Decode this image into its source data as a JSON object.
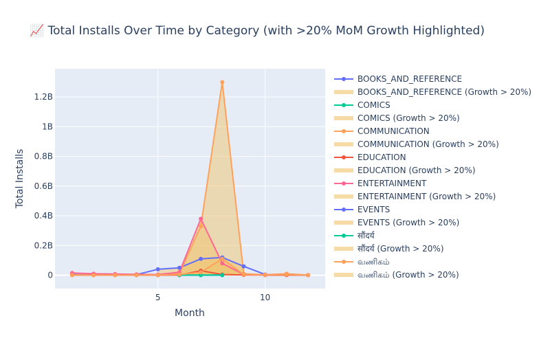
{
  "title": "📈 Total Installs Over Time by Category (with >20% MoM Growth Highlighted)",
  "chart_data": {
    "type": "line",
    "xlabel": "Month",
    "ylabel": "Total Installs",
    "xlim": [
      0.2,
      12.8
    ],
    "ylim": [
      -90000000,
      1390000000
    ],
    "x_ticks": [
      5,
      10
    ],
    "y_ticks": [
      {
        "value": 0,
        "label": "0"
      },
      {
        "value": 200000000,
        "label": "0.2B"
      },
      {
        "value": 400000000,
        "label": "0.4B"
      },
      {
        "value": 600000000,
        "label": "0.6B"
      },
      {
        "value": 800000000,
        "label": "0.8B"
      },
      {
        "value": 1000000000,
        "label": "1B"
      },
      {
        "value": 1200000000,
        "label": "1.2B"
      }
    ],
    "grid": true,
    "legend_position": "right",
    "growth_fill_color": "#f0c36d",
    "series": [
      {
        "name": "BOOKS_AND_REFERENCE",
        "color": "#636efa",
        "x": [
          1,
          2,
          3,
          4,
          5,
          6,
          7,
          8,
          9,
          10,
          11,
          12
        ],
        "y": [
          5000000,
          2000000,
          3000000,
          4000000,
          40000000,
          50000000,
          110000000,
          120000000,
          60000000,
          5000000,
          3000000,
          1000000
        ]
      },
      {
        "name": "BOOKS_AND_REFERENCE (Growth > 20%)",
        "fill": true,
        "x": [
          5,
          6,
          7,
          8,
          9
        ],
        "y": [
          40000000,
          50000000,
          110000000,
          120000000,
          60000000
        ]
      },
      {
        "name": "COMICS",
        "color": "#00cc96",
        "x": [
          6,
          7,
          8
        ],
        "y": [
          500000,
          1000000,
          2000000
        ]
      },
      {
        "name": "COMICS (Growth > 20%)",
        "fill": true,
        "x": [
          6,
          7,
          8
        ],
        "y": [
          500000,
          1000000,
          2000000
        ]
      },
      {
        "name": "COMMUNICATION",
        "color": "#ffa15a",
        "x": [
          1,
          2,
          3,
          4,
          5,
          6,
          7,
          8,
          9,
          10,
          11,
          12
        ],
        "y": [
          2000000,
          1000000,
          1000000,
          1000000,
          1000000,
          10000000,
          330000000,
          1300000000,
          10000000,
          3000000,
          10000000,
          1000000
        ]
      },
      {
        "name": "COMMUNICATION (Growth > 20%)",
        "fill": true,
        "x": [
          6,
          7,
          8,
          9,
          10,
          11,
          12
        ],
        "y": [
          10000000,
          330000000,
          1300000000,
          10000000,
          3000000,
          10000000,
          1000000
        ]
      },
      {
        "name": "EDUCATION",
        "color": "#ef553b",
        "x": [
          1,
          2,
          3,
          4,
          5,
          6,
          7,
          8,
          9,
          10,
          11,
          12
        ],
        "y": [
          1000000,
          500000,
          1000000,
          1000000,
          1000000,
          1000000,
          30000000,
          5000000,
          2000000,
          1000000,
          1000000,
          500000
        ]
      },
      {
        "name": "EDUCATION (Growth > 20%)",
        "fill": true,
        "x": [
          6,
          7,
          8
        ],
        "y": [
          1000000,
          30000000,
          5000000
        ]
      },
      {
        "name": "ENTERTAINMENT",
        "color": "#ff6692",
        "x": [
          1,
          2,
          3,
          4,
          5,
          6,
          7,
          8,
          9,
          10,
          11,
          12
        ],
        "y": [
          15000000,
          10000000,
          8000000,
          6000000,
          5000000,
          20000000,
          380000000,
          80000000,
          5000000,
          3000000,
          5000000,
          1000000
        ]
      },
      {
        "name": "ENTERTAINMENT (Growth > 20%)",
        "fill": true,
        "x": [
          6,
          7,
          8,
          9
        ],
        "y": [
          20000000,
          380000000,
          80000000,
          5000000
        ]
      },
      {
        "name": "EVENTS",
        "color": "#636efa",
        "x": [
          6,
          7,
          8
        ],
        "y": [
          500000,
          1000000,
          1000000
        ]
      },
      {
        "name": "EVENTS (Growth > 20%)",
        "fill": true,
        "x": [
          6,
          7,
          8
        ],
        "y": [
          500000,
          1000000,
          1000000
        ]
      },
      {
        "name": "सौंदर्य",
        "color": "#00cc96",
        "x": [
          6,
          7,
          8
        ],
        "y": [
          500000,
          1000000,
          1000000
        ]
      },
      {
        "name": "सौंदर्य (Growth > 20%)",
        "fill": true,
        "x": [
          6,
          7,
          8
        ],
        "y": [
          500000,
          1000000,
          1000000
        ]
      },
      {
        "name": "வணிகம்",
        "color": "#ffa15a",
        "x": [
          1,
          2,
          3,
          4,
          5,
          6,
          7,
          8,
          9,
          10,
          11,
          12
        ],
        "y": [
          1000000,
          1000000,
          1000000,
          1000000,
          2000000,
          5000000,
          20000000,
          110000000,
          5000000,
          3000000,
          5000000,
          1000000
        ]
      },
      {
        "name": "வணிகம் (Growth > 20%)",
        "fill": true,
        "x": [
          7,
          8,
          9,
          10,
          11
        ],
        "y": [
          20000000,
          110000000,
          5000000,
          3000000,
          5000000
        ]
      }
    ]
  }
}
